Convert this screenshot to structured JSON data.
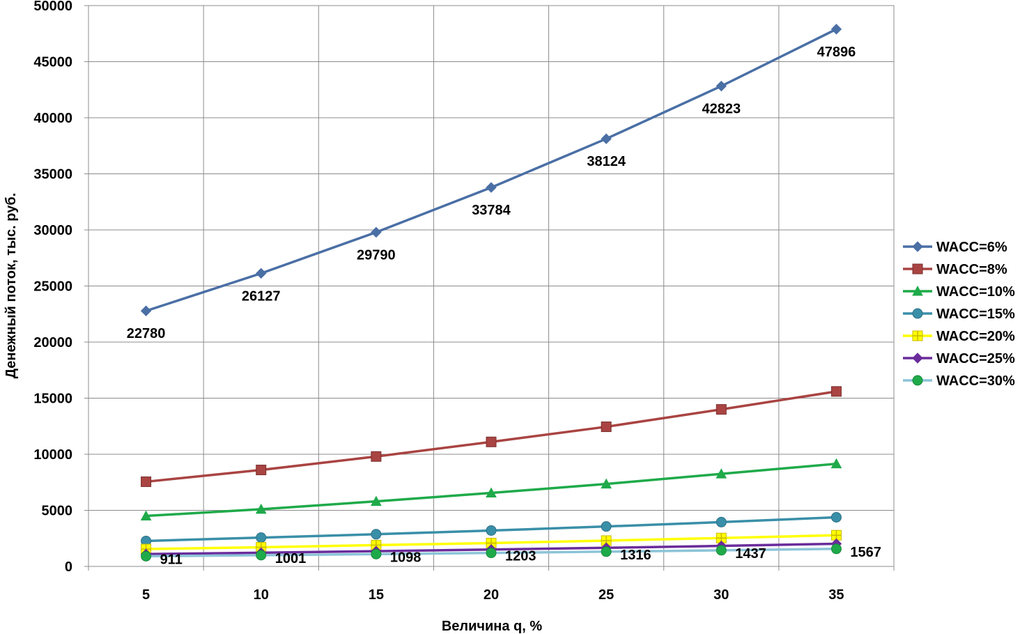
{
  "chart_data": {
    "type": "line",
    "xlabel": "Величина q, %",
    "ylabel": "Денежный поток, тыс. руб.",
    "x": [
      5,
      10,
      15,
      20,
      25,
      30,
      35
    ],
    "ylim": [
      0,
      50000
    ],
    "yticks": [
      0,
      5000,
      10000,
      15000,
      20000,
      25000,
      30000,
      35000,
      40000,
      45000,
      50000
    ],
    "grid": true,
    "legend_position": "right",
    "series": [
      {
        "name": "WACC=6%",
        "color": "#4A6FA5",
        "marker": "diamond",
        "values": [
          22780,
          26127,
          29790,
          33784,
          38124,
          42823,
          47896
        ],
        "show_labels": true
      },
      {
        "name": "WACC=8%",
        "color": "#A94442",
        "marker": "square",
        "values": [
          7550,
          8600,
          9800,
          11100,
          12450,
          14000,
          15600
        ],
        "show_labels": false
      },
      {
        "name": "WACC=10%",
        "color": "#1FAA4A",
        "marker": "triangle",
        "values": [
          4500,
          5100,
          5800,
          6550,
          7350,
          8250,
          9150
        ],
        "show_labels": false
      },
      {
        "name": "WACC=15%",
        "color": "#3A8FA8",
        "marker": "circle",
        "values": [
          2270,
          2570,
          2870,
          3200,
          3560,
          3950,
          4380
        ],
        "show_labels": false
      },
      {
        "name": "WACC=20%",
        "color": "#FFFF00",
        "marker": "plus-square",
        "values": [
          1550,
          1710,
          1900,
          2080,
          2300,
          2530,
          2780
        ],
        "show_labels": false
      },
      {
        "name": "WACC=25%",
        "color": "#6A2C9B",
        "marker": "diamond",
        "values": [
          1100,
          1220,
          1360,
          1510,
          1660,
          1830,
          2020
        ],
        "show_labels": false
      },
      {
        "name": "WACC=30%",
        "color": "#8CC4D8",
        "marker": "circle-green",
        "values": [
          911,
          1001,
          1098,
          1203,
          1316,
          1437,
          1567
        ],
        "show_labels": true
      }
    ]
  }
}
